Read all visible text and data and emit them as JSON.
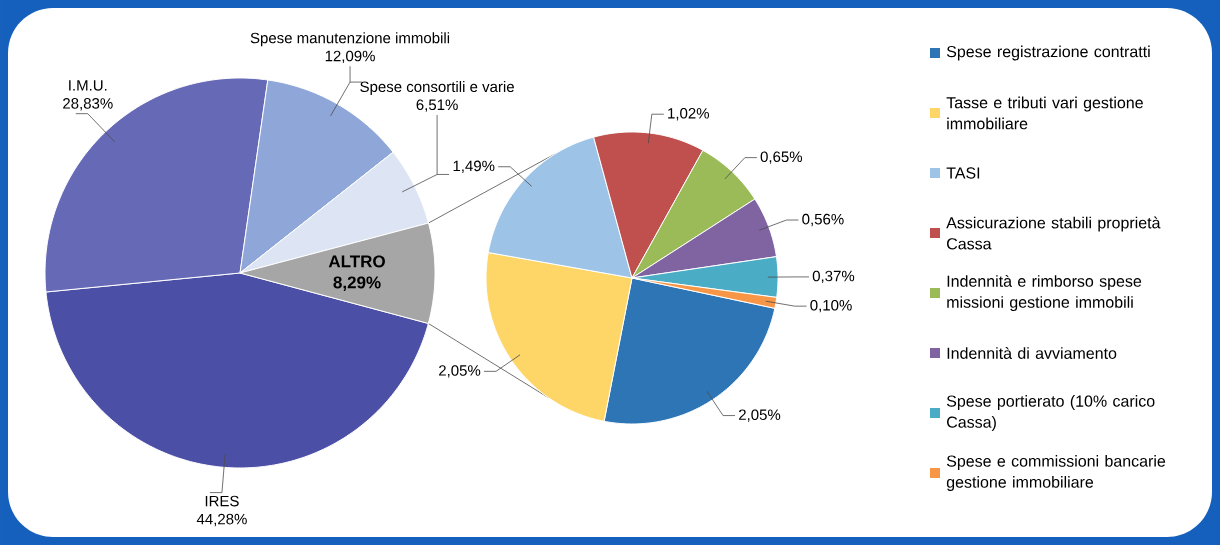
{
  "chart_data": [
    {
      "type": "pie",
      "categories": [
        "IRES",
        "I.M.U.",
        "Spese manutenzione immobili",
        "Spese consortili e varie",
        "ALTRO"
      ],
      "values": [
        44.28,
        28.83,
        12.09,
        6.51,
        8.29
      ],
      "colors": [
        "#4b4fa5",
        "#6669b6",
        "#8fa6d9",
        "#dde5f4",
        "#a6a6a6"
      ],
      "value_labels": [
        "44,28%",
        "28,83%",
        "12,09%",
        "6,51%",
        "8,29%"
      ]
    },
    {
      "type": "pie",
      "categories": [
        "Spese registrazione contratti",
        "Tasse e tributi vari gestione immobiliare",
        "TASI",
        "Assicurazione stabili proprietà Cassa",
        "Indennità e rimborso spese missioni gestione immobili",
        "Indennità  di avviamento",
        "Spese portierato (10% carico Cassa)",
        "Spese e commissioni bancarie gestione immobiliare"
      ],
      "values": [
        2.05,
        2.05,
        1.49,
        1.02,
        0.65,
        0.56,
        0.37,
        0.1
      ],
      "colors": [
        "#2e75b6",
        "#fdd667",
        "#9dc3e6",
        "#c0504d",
        "#9bbb59",
        "#8064a2",
        "#4bacc6",
        "#f79646"
      ],
      "value_labels": [
        "2,05%",
        "2,05%",
        "1,49%",
        "1,02%",
        "0,65%",
        "0,56%",
        "0,37%",
        "0,10%"
      ],
      "legend": "right"
    }
  ]
}
